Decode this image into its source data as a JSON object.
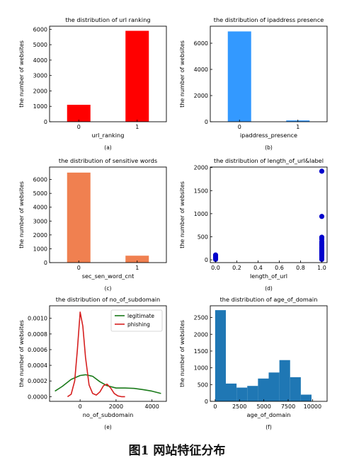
{
  "figure_caption": "图1   网站特征分布",
  "chart_data": [
    {
      "type": "bar",
      "title": "the distribution of url ranking",
      "xlabel": "url_ranking",
      "ylabel": "the number of websites",
      "sublabel": "(a)",
      "color": "#ff0000",
      "categories": [
        "0",
        "1"
      ],
      "values": [
        1100,
        5900
      ],
      "ylim": [
        0,
        6200
      ],
      "yticks": [
        0,
        1000,
        2000,
        3000,
        4000,
        5000,
        6000
      ]
    },
    {
      "type": "bar",
      "title": "the distribution of ipaddress presence",
      "xlabel": "ipaddress_presence",
      "ylabel": "the number of websites",
      "sublabel": "(b)",
      "color": "#3399ff",
      "categories": [
        "0",
        "1"
      ],
      "values": [
        6900,
        100
      ],
      "ylim": [
        0,
        7300
      ],
      "yticks": [
        0,
        2000,
        4000,
        6000
      ]
    },
    {
      "type": "bar",
      "title": "the distribution of sensitive words",
      "xlabel": "sec_sen_word_cnt",
      "ylabel": "the number of websites",
      "sublabel": "(c)",
      "color": "#f08050",
      "categories": [
        "0",
        "1"
      ],
      "values": [
        6500,
        500
      ],
      "ylim": [
        0,
        6900
      ],
      "yticks": [
        0,
        1000,
        2000,
        3000,
        4000,
        5000,
        6000
      ]
    },
    {
      "type": "scatter",
      "title": "the distribution of length_of_url&label",
      "xlabel": "length_of_url",
      "ylabel": "the number of websites",
      "sublabel": "(d)",
      "color": "#0000cc",
      "xlim": [
        -0.05,
        1.05
      ],
      "ylim": [
        -60,
        2010
      ],
      "xticks": [
        "0.0",
        "0.2",
        "0.4",
        "0.6",
        "0.8",
        "1.0"
      ],
      "yticks": [
        0,
        500,
        1000,
        1500,
        2000
      ],
      "points": [
        {
          "x": 0.0,
          "y": 10
        },
        {
          "x": 0.0,
          "y": 25
        },
        {
          "x": 0.0,
          "y": 40
        },
        {
          "x": 0.0,
          "y": 60
        },
        {
          "x": 0.0,
          "y": 85
        },
        {
          "x": 0.0,
          "y": 105
        },
        {
          "x": 1.0,
          "y": 10
        },
        {
          "x": 1.0,
          "y": 40
        },
        {
          "x": 1.0,
          "y": 70
        },
        {
          "x": 1.0,
          "y": 100
        },
        {
          "x": 1.0,
          "y": 130
        },
        {
          "x": 1.0,
          "y": 160
        },
        {
          "x": 1.0,
          "y": 190
        },
        {
          "x": 1.0,
          "y": 220
        },
        {
          "x": 1.0,
          "y": 250
        },
        {
          "x": 1.0,
          "y": 280
        },
        {
          "x": 1.0,
          "y": 320
        },
        {
          "x": 1.0,
          "y": 360
        },
        {
          "x": 1.0,
          "y": 400
        },
        {
          "x": 1.0,
          "y": 450
        },
        {
          "x": 1.0,
          "y": 490
        },
        {
          "x": 1.0,
          "y": 940
        },
        {
          "x": 1.0,
          "y": 1920
        }
      ]
    },
    {
      "type": "line",
      "title": "the distribution of no_of_subdomain",
      "xlabel": "no_of_subdomain",
      "ylabel": "the number of websites",
      "sublabel": "(e)",
      "xlim": [
        -1700,
        4800
      ],
      "ylim": [
        -6e-05,
        0.00116
      ],
      "xticks": [
        0,
        2000,
        4000
      ],
      "yticks": [
        "0.0000",
        "0.0002",
        "0.0004",
        "0.0006",
        "0.0008",
        "0.0010"
      ],
      "ytick_values": [
        0,
        0.0002,
        0.0004,
        0.0006,
        0.0008,
        0.001
      ],
      "legend_position": "top-right",
      "series": [
        {
          "name": "legitimate",
          "color": "#1a7a1a",
          "x": [
            -1400,
            -1000,
            -500,
            0,
            300,
            700,
            1100,
            1500,
            2000,
            2500,
            3000,
            3500,
            4000,
            4500
          ],
          "y": [
            7e-05,
            0.00013,
            0.00022,
            0.00027,
            0.00028,
            0.00026,
            0.00019,
            0.00014,
            0.00011,
            0.00011,
            0.000105,
            9e-05,
            7e-05,
            4e-05
          ]
        },
        {
          "name": "phishing",
          "color": "#d62020",
          "x": [
            -700,
            -500,
            -300,
            -150,
            0,
            150,
            300,
            500,
            700,
            900,
            1100,
            1300,
            1500,
            1700,
            1900,
            2100,
            2300,
            2500
          ],
          "y": [
            0.0,
            3e-05,
            0.0002,
            0.0006,
            0.00108,
            0.0009,
            0.0005,
            0.00015,
            4e-05,
            2e-05,
            6e-05,
            0.00014,
            0.00016,
            0.00011,
            4e-05,
            1e-05,
            0.0,
            0.0
          ]
        }
      ]
    },
    {
      "type": "bar",
      "title": "the distribution of age_of_domain",
      "xlabel": "age_of_domain",
      "ylabel": "the number of websites",
      "sublabel": "(f)",
      "color": "#1f77b4",
      "histogram": true,
      "bin_edges": [
        0,
        1100,
        2200,
        3300,
        4400,
        5500,
        6600,
        7700,
        8800,
        9900,
        11000
      ],
      "values": [
        2720,
        530,
        410,
        460,
        680,
        860,
        1230,
        720,
        200,
        0
      ],
      "xlim": [
        -500,
        11500
      ],
      "ylim": [
        0,
        2850
      ],
      "xticks": [
        0,
        2500,
        5000,
        7500,
        10000
      ],
      "yticks": [
        0,
        500,
        1000,
        1500,
        2000,
        2500
      ]
    }
  ]
}
